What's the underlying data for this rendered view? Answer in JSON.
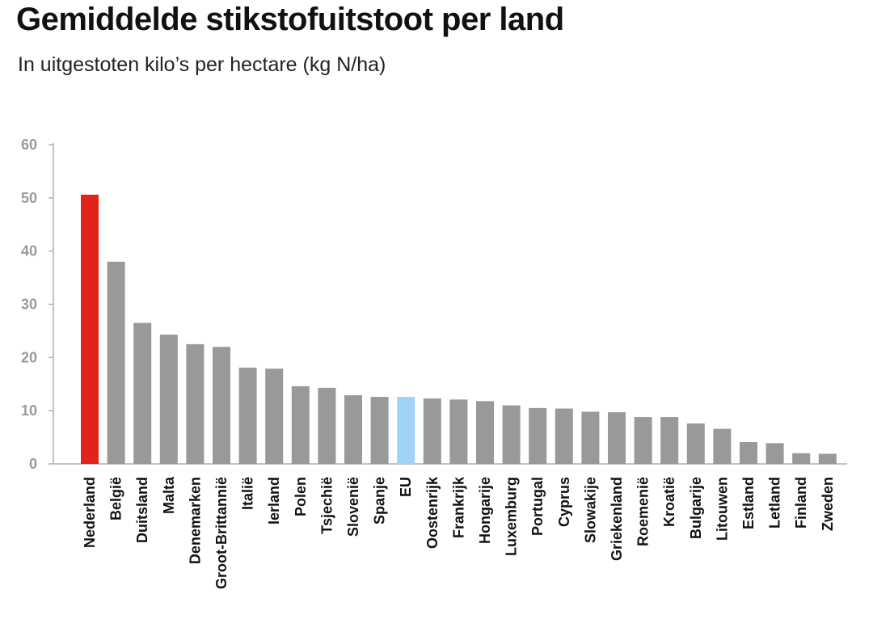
{
  "header": {
    "title": "Gemiddelde stikstofuitstoot per land",
    "subtitle": "In uitgestoten kilo’s per hectare (kg N/ha)"
  },
  "colors": {
    "default_bar": "#999999",
    "highlight_bar": "#e2231a",
    "eu_bar": "#9fd3f5",
    "axis": "#b0b0b0",
    "tick_label": "#9a9a9a"
  },
  "chart_data": {
    "type": "bar",
    "title": "Gemiddelde stikstofuitstoot per land",
    "subtitle": "In uitgestoten kilo’s per hectare (kg N/ha)",
    "xlabel": "",
    "ylabel": "",
    "ylim": [
      0,
      60
    ],
    "yticks": [
      0,
      10,
      20,
      30,
      40,
      50,
      60
    ],
    "grid": false,
    "categories": [
      "Nederland",
      "België",
      "Duitsland",
      "Malta",
      "Denemarken",
      "Groot-Brittannië",
      "Italië",
      "Ierland",
      "Polen",
      "Tsjechië",
      "Slovenië",
      "Spanje",
      "EU",
      "Oostenrijk",
      "Frankrijk",
      "Hongarije",
      "Luxemburg",
      "Portugal",
      "Cyprus",
      "Slowakije",
      "Griekenland",
      "Roemenië",
      "Kroatië",
      "Bulgarije",
      "Litouwen",
      "Estland",
      "Letland",
      "Finland",
      "Zweden"
    ],
    "values": [
      50.6,
      38,
      26.5,
      24.3,
      22.5,
      22,
      18.1,
      17.9,
      14.6,
      14.3,
      12.9,
      12.6,
      12.6,
      12.3,
      12.1,
      11.8,
      11,
      10.5,
      10.4,
      9.8,
      9.7,
      8.8,
      8.8,
      7.6,
      6.6,
      4.1,
      3.9,
      2,
      1.9
    ],
    "highlight": {
      "Nederland": "#e2231a",
      "EU": "#9fd3f5"
    }
  }
}
